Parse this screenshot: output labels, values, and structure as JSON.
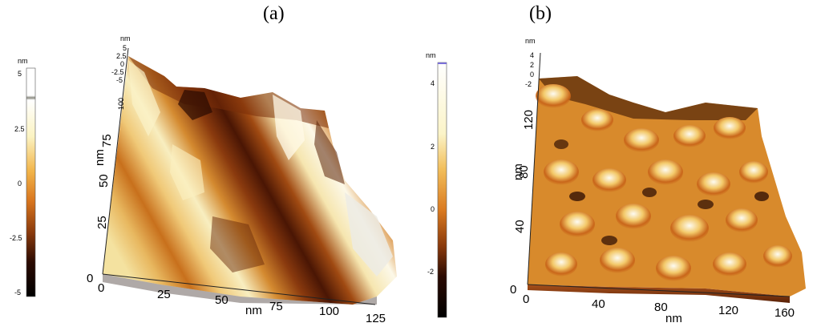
{
  "panels": [
    {
      "label": "(a)",
      "colorbar": {
        "unit": "nm",
        "ticks": [
          "5",
          "2.5",
          "0",
          "-2.5",
          "-5"
        ]
      },
      "z_axis": {
        "unit": "nm",
        "ticks": [
          "5",
          "2.5",
          "0",
          "-2.5",
          "-5"
        ]
      },
      "y_axis": {
        "unit": "nm",
        "ticks": [
          "0",
          "25",
          "50",
          "75",
          "100"
        ]
      },
      "x_axis": {
        "unit": "nm",
        "ticks": [
          "0",
          "25",
          "50",
          "75",
          "100",
          "125"
        ]
      }
    },
    {
      "label": "(b)",
      "colorbar": {
        "unit": "nm",
        "ticks": [
          "4",
          "2",
          "0",
          "-2"
        ]
      },
      "z_axis": {
        "unit": "nm",
        "ticks": [
          "4",
          "2",
          "0",
          "-2"
        ]
      },
      "y_axis": {
        "unit": "nm",
        "ticks": [
          "0",
          "40",
          "80",
          "120"
        ]
      },
      "x_axis": {
        "unit": "nm",
        "ticks": [
          "0",
          "40",
          "80",
          "120",
          "160"
        ]
      }
    }
  ],
  "colors": {
    "dark": "#1a0500",
    "brown": "#6b2a08",
    "orange": "#e08a2a",
    "yellow": "#f5e8a0",
    "white": "#ffffff"
  }
}
